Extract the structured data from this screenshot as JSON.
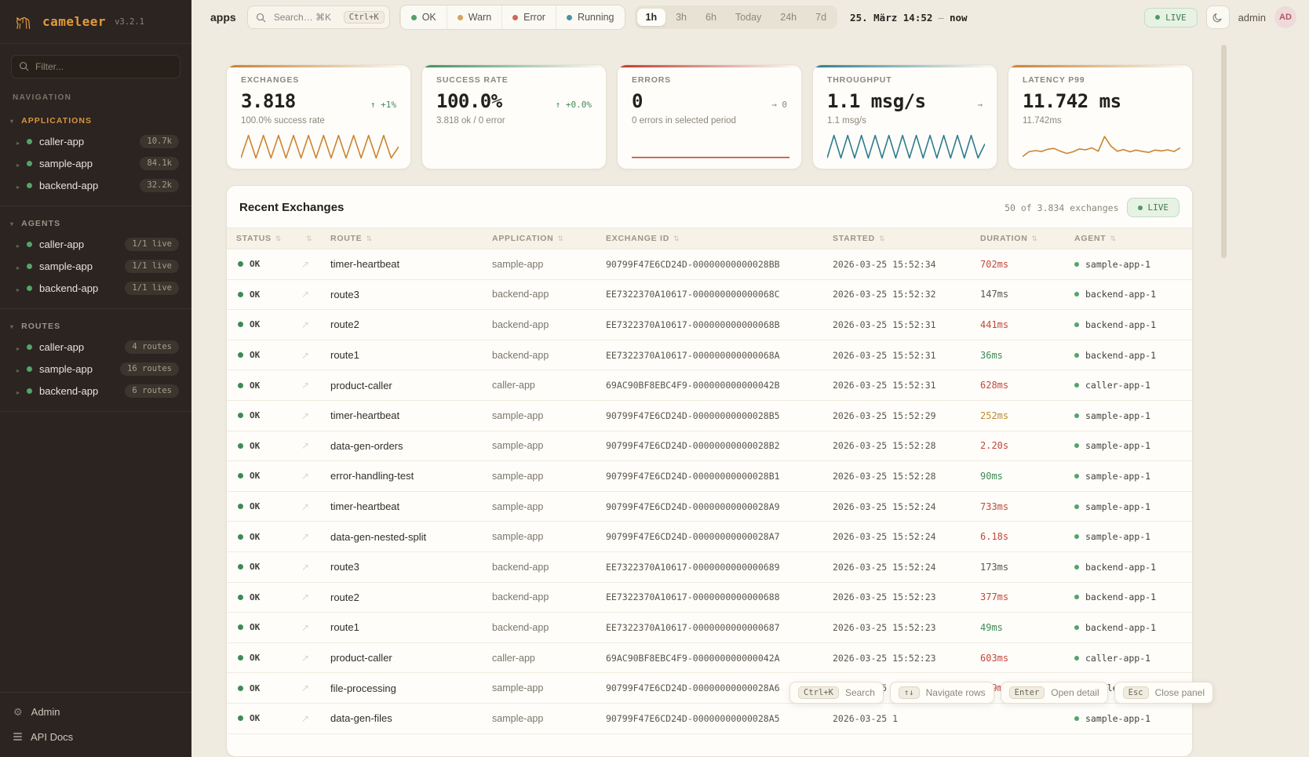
{
  "icons": {
    "camel-logo": "camel-line-art",
    "search": "magnifier",
    "sort": "⇅",
    "trend": "↗",
    "section-caret": "▾",
    "item-caret": "▸",
    "moon": "crescent",
    "gear": "⚙",
    "docs": "list-lines"
  },
  "sidebar": {
    "logo": {
      "name": "cameleer",
      "version": "v3.2.1"
    },
    "filter_placeholder": "Filter...",
    "nav_label": "NAVIGATION",
    "sections": [
      {
        "label": "APPLICATIONS",
        "items": [
          {
            "name": "caller-app",
            "badge": "10.7k"
          },
          {
            "name": "sample-app",
            "badge": "84.1k"
          },
          {
            "name": "backend-app",
            "badge": "32.2k"
          }
        ]
      },
      {
        "label": "AGENTS",
        "items": [
          {
            "name": "caller-app",
            "badge": "1/1 live"
          },
          {
            "name": "sample-app",
            "badge": "1/1 live"
          },
          {
            "name": "backend-app",
            "badge": "1/1 live"
          }
        ]
      },
      {
        "label": "ROUTES",
        "items": [
          {
            "name": "caller-app",
            "badge": "4 routes"
          },
          {
            "name": "sample-app",
            "badge": "16 routes"
          },
          {
            "name": "backend-app",
            "badge": "6 routes"
          }
        ]
      }
    ],
    "footer": [
      {
        "label": "Admin",
        "icon": "gear"
      },
      {
        "label": "API Docs",
        "icon": "docs"
      }
    ]
  },
  "topbar": {
    "context": "apps",
    "search": {
      "placeholder": "Search… ⌘K",
      "kbd": "Ctrl+K"
    },
    "status_filters": [
      {
        "label": "OK",
        "color": "#55a06a"
      },
      {
        "label": "Warn",
        "color": "#d8a35a"
      },
      {
        "label": "Error",
        "color": "#cc6a55"
      },
      {
        "label": "Running",
        "color": "#4a93a3"
      }
    ],
    "time_ranges": [
      {
        "label": "1h",
        "active": true
      },
      {
        "label": "3h"
      },
      {
        "label": "6h"
      },
      {
        "label": "Today"
      },
      {
        "label": "24h"
      },
      {
        "label": "7d"
      }
    ],
    "date_from": "25. März 14:52",
    "date_sep": "—",
    "date_to": "now",
    "live_label": "LIVE",
    "user": {
      "name": "admin",
      "initials": "AD"
    }
  },
  "cards": [
    {
      "title": "EXCHANGES",
      "value": "3.818",
      "delta": "↑ +1%",
      "subtitle": "100.0% success rate",
      "accent": "#c87f2f",
      "spark_color": "#cd8430",
      "sparkline": [
        1,
        9,
        1,
        9,
        1,
        9,
        1,
        9,
        1,
        9,
        1,
        9,
        1,
        9,
        1,
        9,
        1,
        9,
        1,
        9,
        1,
        5
      ]
    },
    {
      "title": "SUCCESS RATE",
      "value": "100.0%",
      "delta": "↑ +0.0%",
      "subtitle": "3.818 ok / 0 error",
      "accent": "#3f8f5f",
      "spark_color": "",
      "sparkline": []
    },
    {
      "title": "ERRORS",
      "value": "0",
      "delta": "→ 0",
      "subtitle": "0 errors in selected period",
      "accent": "#c0392b",
      "spark_color": "#c4473a",
      "sparkline": [
        1.2,
        1.2
      ]
    },
    {
      "title": "THROUGHPUT",
      "value": "1.1 msg/s",
      "delta": "→",
      "subtitle": "1.1 msg/s",
      "accent": "#2e7d8c",
      "spark_color": "#2e7d8c",
      "sparkline": [
        1,
        9,
        1,
        9,
        1,
        9,
        1,
        9,
        1,
        9,
        1,
        9,
        1,
        9,
        1,
        9,
        1,
        9,
        1,
        9,
        1,
        9,
        1,
        6
      ]
    },
    {
      "title": "LATENCY P99",
      "value": "11.742 ms",
      "delta": "",
      "subtitle": "11.742ms",
      "accent": "#c87f2f",
      "spark_color": "#cd8430",
      "sparkline": [
        1.5,
        3.2,
        3.6,
        3.3,
        4.1,
        4.4,
        3.4,
        2.6,
        3.2,
        4.2,
        3.9,
        4.6,
        3.4,
        8.6,
        5.2,
        3.4,
        4.0,
        3.2,
        3.8,
        3.3,
        3.0,
        3.8,
        3.5,
        3.9,
        3.3,
        4.6
      ]
    }
  ],
  "table": {
    "title": "Recent Exchanges",
    "count": "50 of 3.834 exchanges",
    "live_label": "LIVE",
    "columns": [
      {
        "label": "STATUS"
      },
      {
        "label": ""
      },
      {
        "label": "ROUTE"
      },
      {
        "label": "APPLICATION"
      },
      {
        "label": "EXCHANGE ID"
      },
      {
        "label": "STARTED"
      },
      {
        "label": "DURATION"
      },
      {
        "label": "AGENT"
      }
    ],
    "rows": [
      {
        "status": "OK",
        "route": "timer-heartbeat",
        "app": "sample-app",
        "id": "90799F47E6CD24D-00000000000028BB",
        "started": "2026-03-25 15:52:34",
        "duration": "702ms",
        "dc": "red",
        "agent": "sample-app-1"
      },
      {
        "status": "OK",
        "route": "route3",
        "app": "backend-app",
        "id": "EE7322370A10617-000000000000068C",
        "started": "2026-03-25 15:52:32",
        "duration": "147ms",
        "dc": "neutral",
        "agent": "backend-app-1"
      },
      {
        "status": "OK",
        "route": "route2",
        "app": "backend-app",
        "id": "EE7322370A10617-000000000000068B",
        "started": "2026-03-25 15:52:31",
        "duration": "441ms",
        "dc": "red",
        "agent": "backend-app-1"
      },
      {
        "status": "OK",
        "route": "route1",
        "app": "backend-app",
        "id": "EE7322370A10617-000000000000068A",
        "started": "2026-03-25 15:52:31",
        "duration": "36ms",
        "dc": "green",
        "agent": "backend-app-1"
      },
      {
        "status": "OK",
        "route": "product-caller",
        "app": "caller-app",
        "id": "69AC90BF8EBC4F9-000000000000042B",
        "started": "2026-03-25 15:52:31",
        "duration": "628ms",
        "dc": "red",
        "agent": "caller-app-1"
      },
      {
        "status": "OK",
        "route": "timer-heartbeat",
        "app": "sample-app",
        "id": "90799F47E6CD24D-00000000000028B5",
        "started": "2026-03-25 15:52:29",
        "duration": "252ms",
        "dc": "amber",
        "agent": "sample-app-1"
      },
      {
        "status": "OK",
        "route": "data-gen-orders",
        "app": "sample-app",
        "id": "90799F47E6CD24D-00000000000028B2",
        "started": "2026-03-25 15:52:28",
        "duration": "2.20s",
        "dc": "red",
        "agent": "sample-app-1"
      },
      {
        "status": "OK",
        "route": "error-handling-test",
        "app": "sample-app",
        "id": "90799F47E6CD24D-00000000000028B1",
        "started": "2026-03-25 15:52:28",
        "duration": "90ms",
        "dc": "green",
        "agent": "sample-app-1"
      },
      {
        "status": "OK",
        "route": "timer-heartbeat",
        "app": "sample-app",
        "id": "90799F47E6CD24D-00000000000028A9",
        "started": "2026-03-25 15:52:24",
        "duration": "733ms",
        "dc": "red",
        "agent": "sample-app-1"
      },
      {
        "status": "OK",
        "route": "data-gen-nested-split",
        "app": "sample-app",
        "id": "90799F47E6CD24D-00000000000028A7",
        "started": "2026-03-25 15:52:24",
        "duration": "6.18s",
        "dc": "red",
        "agent": "sample-app-1"
      },
      {
        "status": "OK",
        "route": "route3",
        "app": "backend-app",
        "id": "EE7322370A10617-0000000000000689",
        "started": "2026-03-25 15:52:24",
        "duration": "173ms",
        "dc": "neutral",
        "agent": "backend-app-1"
      },
      {
        "status": "OK",
        "route": "route2",
        "app": "backend-app",
        "id": "EE7322370A10617-0000000000000688",
        "started": "2026-03-25 15:52:23",
        "duration": "377ms",
        "dc": "red",
        "agent": "backend-app-1"
      },
      {
        "status": "OK",
        "route": "route1",
        "app": "backend-app",
        "id": "EE7322370A10617-0000000000000687",
        "started": "2026-03-25 15:52:23",
        "duration": "49ms",
        "dc": "green",
        "agent": "backend-app-1"
      },
      {
        "status": "OK",
        "route": "product-caller",
        "app": "caller-app",
        "id": "69AC90BF8EBC4F9-000000000000042A",
        "started": "2026-03-25 15:52:23",
        "duration": "603ms",
        "dc": "red",
        "agent": "caller-app-1"
      },
      {
        "status": "OK",
        "route": "file-processing",
        "app": "sample-app",
        "id": "90799F47E6CD24D-00000000000028A6",
        "started": "2026-03-25 15:52:21",
        "duration": "809ms",
        "dc": "red",
        "agent": "sample-app-1"
      },
      {
        "status": "OK",
        "route": "data-gen-files",
        "app": "sample-app",
        "id": "90799F47E6CD24D-00000000000028A5",
        "started": "2026-03-25 1",
        "duration": "",
        "dc": "neutral",
        "agent": "sample-app-1"
      }
    ]
  },
  "hints": [
    {
      "kbd": "Ctrl+K",
      "label": "Search"
    },
    {
      "kbd": "↑↓",
      "label": "Navigate rows"
    },
    {
      "kbd": "Enter",
      "label": "Open detail"
    },
    {
      "kbd": "Esc",
      "label": "Close panel"
    }
  ]
}
